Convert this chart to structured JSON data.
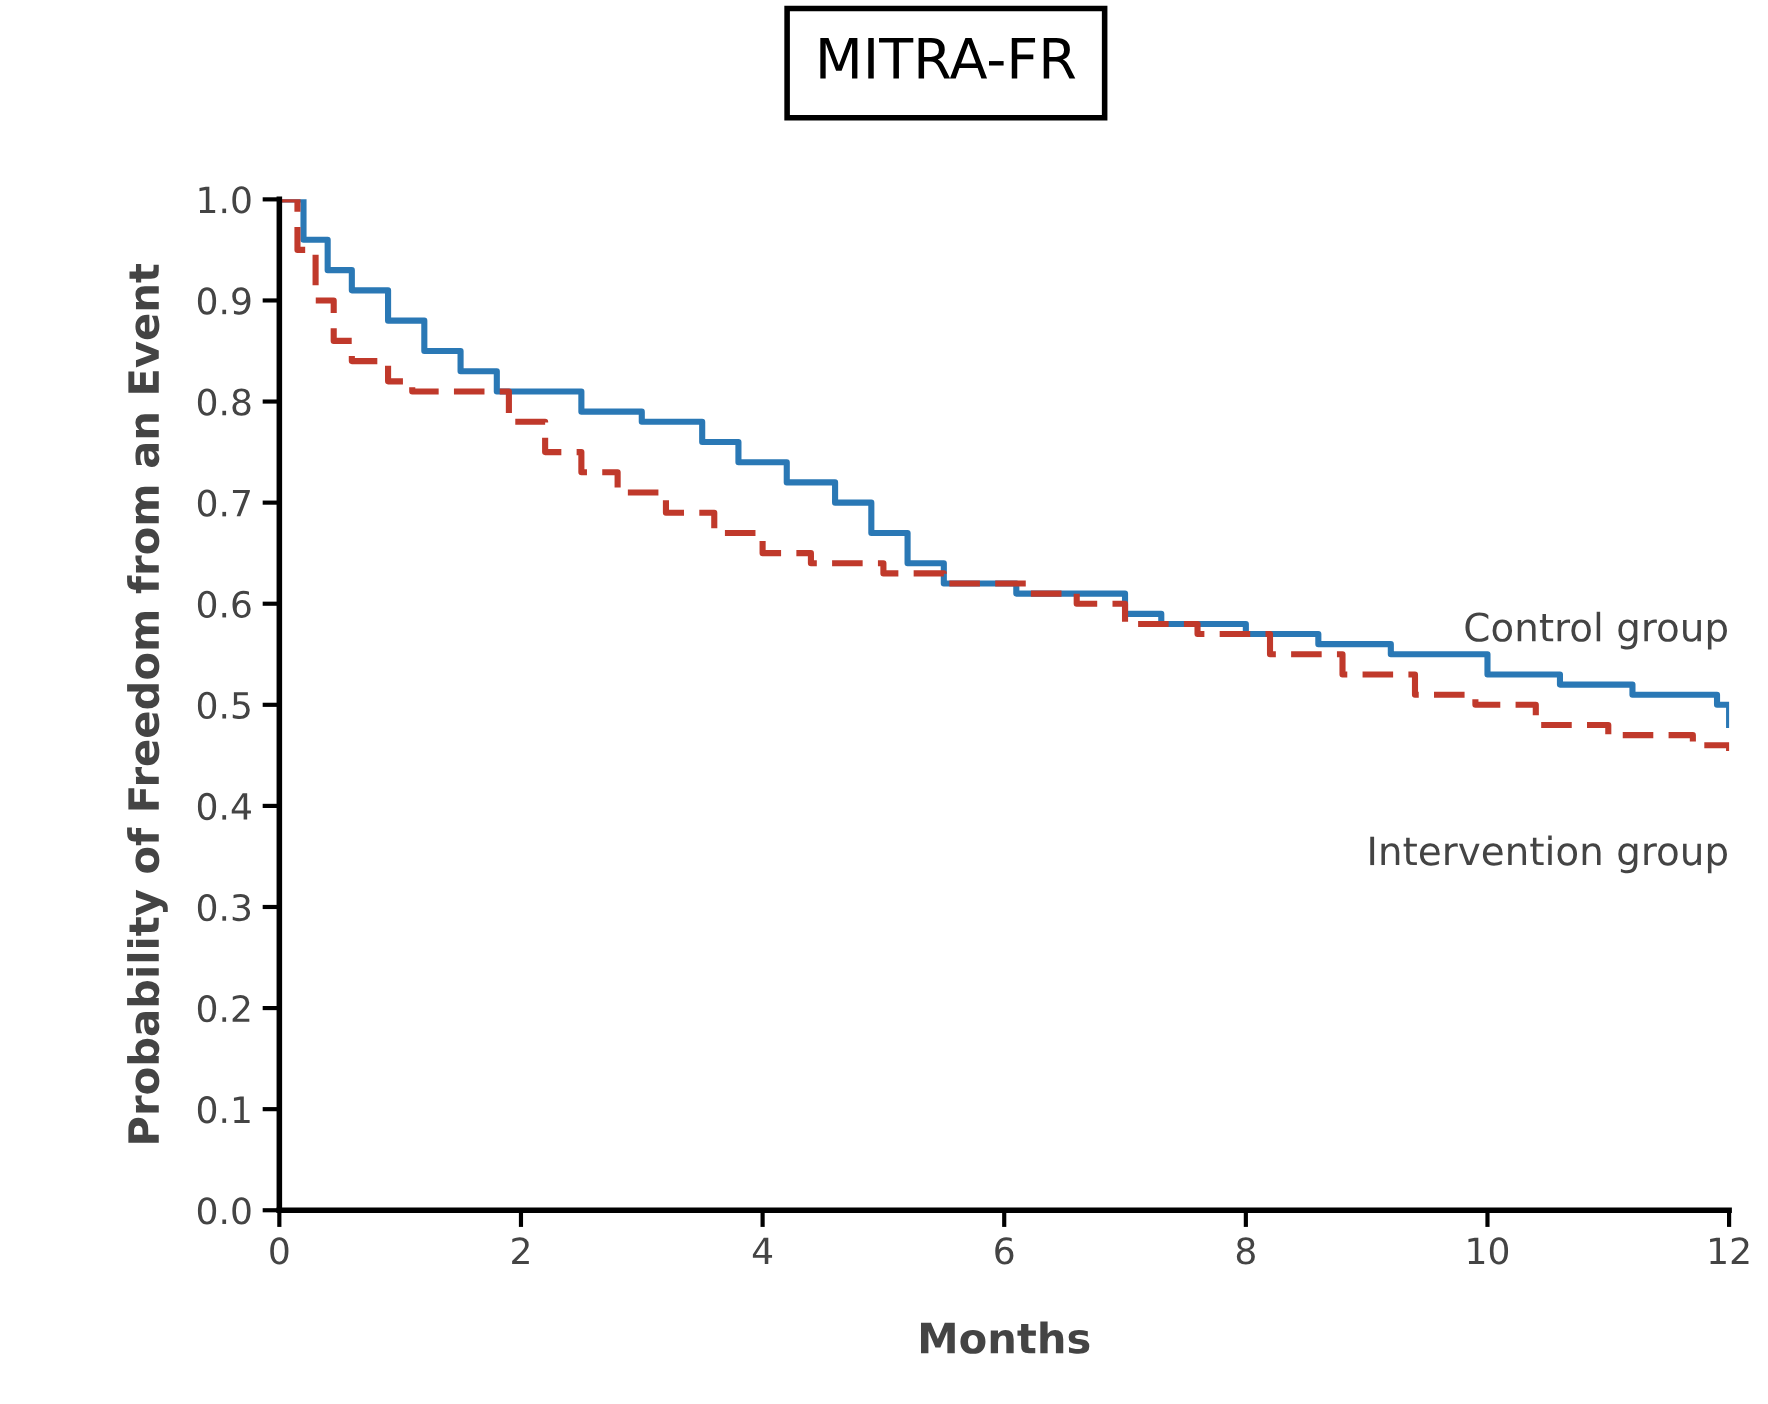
{
  "chart_data": {
    "type": "step",
    "title": "MITRA-FR",
    "xlabel": "Months",
    "ylabel": "Probability of Freedom from an Event",
    "xlim": [
      0,
      12
    ],
    "xticks": [
      0,
      2,
      4,
      6,
      8,
      10,
      12
    ],
    "ylim": [
      0,
      1.0
    ],
    "yticks": [
      {
        "value": 0,
        "label": "0.0"
      },
      0.1,
      0.2,
      0.3,
      0.4,
      0.5,
      0.6,
      0.7,
      0.8,
      0.9,
      {
        "value": 1,
        "label": "1.0"
      }
    ],
    "grid": false,
    "legend": false,
    "series": [
      {
        "name": "Control group",
        "color": "#2a78b5",
        "line_style": "solid",
        "x": [
          0,
          0.2,
          0.4,
          0.6,
          0.9,
          1.2,
          1.5,
          1.8,
          2.5,
          3.0,
          3.5,
          3.8,
          4.2,
          4.6,
          4.9,
          5.2,
          5.5,
          6.1,
          7.0,
          7.3,
          8.0,
          8.6,
          9.2,
          10.0,
          10.6,
          11.2,
          11.9,
          12
        ],
        "values": [
          1.0,
          0.96,
          0.93,
          0.91,
          0.88,
          0.85,
          0.83,
          0.81,
          0.79,
          0.78,
          0.76,
          0.74,
          0.72,
          0.7,
          0.67,
          0.64,
          0.62,
          0.61,
          0.59,
          0.58,
          0.57,
          0.56,
          0.55,
          0.53,
          0.52,
          0.51,
          0.5,
          0.48
        ]
      },
      {
        "name": "Intervention group",
        "color": "#c0392b",
        "line_style": "dashed",
        "x": [
          0,
          0.15,
          0.3,
          0.45,
          0.6,
          0.9,
          1.1,
          1.9,
          2.2,
          2.5,
          2.8,
          3.2,
          3.6,
          4.0,
          4.4,
          5.0,
          5.5,
          6.2,
          6.6,
          7.0,
          7.6,
          8.2,
          8.8,
          9.4,
          9.9,
          10.4,
          11.0,
          11.7,
          12
        ],
        "values": [
          1.0,
          0.95,
          0.9,
          0.86,
          0.84,
          0.82,
          0.81,
          0.78,
          0.75,
          0.73,
          0.71,
          0.69,
          0.67,
          0.65,
          0.64,
          0.63,
          0.62,
          0.61,
          0.6,
          0.58,
          0.57,
          0.55,
          0.53,
          0.51,
          0.5,
          0.48,
          0.47,
          0.46,
          0.44
        ]
      }
    ]
  }
}
